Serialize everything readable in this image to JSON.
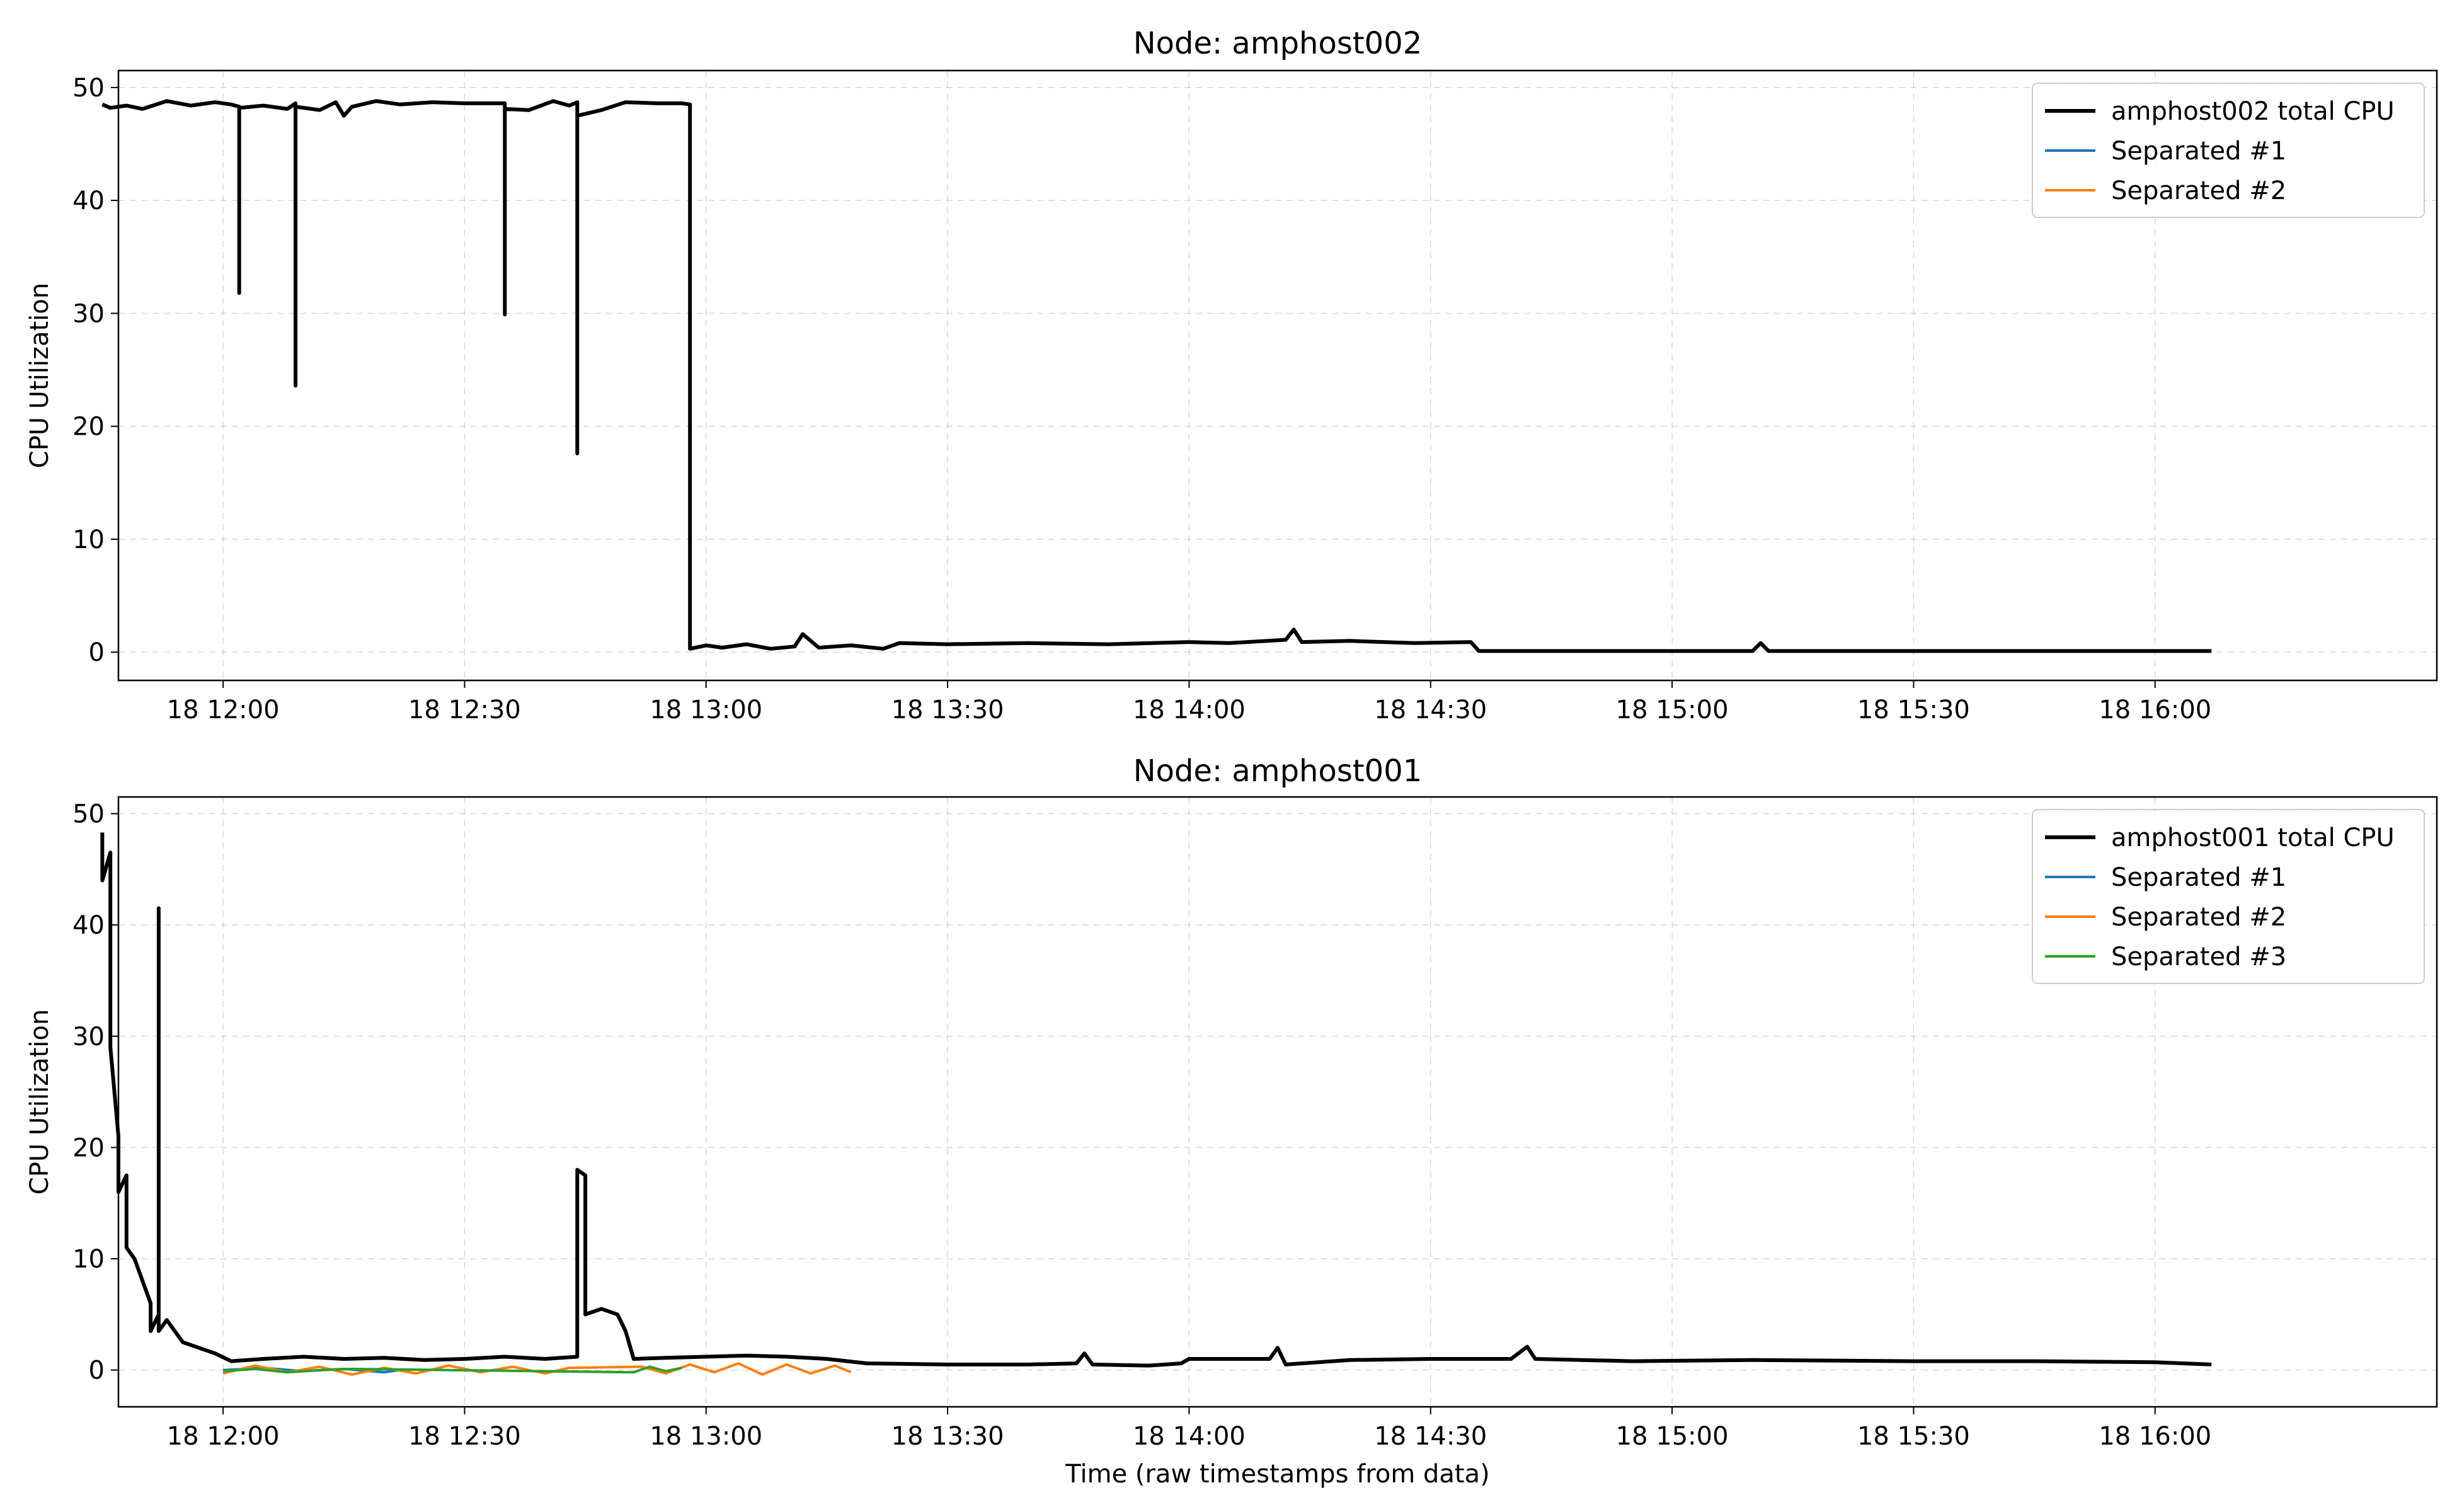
{
  "figure": {
    "xlabel": "Time (raw timestamps from data)"
  },
  "chart_data": [
    {
      "type": "line",
      "title": "Node: amphost002",
      "xlabel": "",
      "ylabel": "CPU Utilization",
      "x_unit": "HH:MM on day 18",
      "xlim": [
        "11:47",
        "16:35"
      ],
      "ylim": [
        -2.5,
        51.5
      ],
      "yticks": [
        0,
        10,
        20,
        30,
        40,
        50
      ],
      "xticks": [
        "12:00",
        "12:30",
        "13:00",
        "13:30",
        "14:00",
        "14:30",
        "15:00",
        "15:30",
        "16:00"
      ],
      "xtick_labels": [
        "18 12:00",
        "18 12:30",
        "18 13:00",
        "18 13:30",
        "18 14:00",
        "18 14:30",
        "18 15:00",
        "18 15:30",
        "18 16:00"
      ],
      "grid": true,
      "legend_position": "upper right",
      "series": [
        {
          "name": "amphost002 total CPU",
          "color": "#000000",
          "points": [
            [
              "11:45",
              48.5
            ],
            [
              "11:46",
              48.2
            ],
            [
              "11:48",
              48.4
            ],
            [
              "11:50",
              48.1
            ],
            [
              "11:53",
              48.8
            ],
            [
              "11:56",
              48.4
            ],
            [
              "11:59",
              48.7
            ],
            [
              "12:01",
              48.5
            ],
            [
              "12:02",
              48.3
            ],
            [
              "12:02",
              31.8
            ],
            [
              "12:02",
              48.2
            ],
            [
              "12:05",
              48.4
            ],
            [
              "12:08",
              48.1
            ],
            [
              "12:09",
              48.6
            ],
            [
              "12:09",
              23.6
            ],
            [
              "12:09",
              48.3
            ],
            [
              "12:12",
              48.0
            ],
            [
              "12:14",
              48.7
            ],
            [
              "12:15",
              47.5
            ],
            [
              "12:16",
              48.3
            ],
            [
              "12:19",
              48.8
            ],
            [
              "12:22",
              48.5
            ],
            [
              "12:26",
              48.7
            ],
            [
              "12:30",
              48.6
            ],
            [
              "12:35",
              48.6
            ],
            [
              "12:35",
              29.9
            ],
            [
              "12:35",
              48.1
            ],
            [
              "12:38",
              48.0
            ],
            [
              "12:41",
              48.8
            ],
            [
              "12:43",
              48.4
            ],
            [
              "12:44",
              48.7
            ],
            [
              "12:44",
              17.6
            ],
            [
              "12:44",
              47.5
            ],
            [
              "12:47",
              48.0
            ],
            [
              "12:50",
              48.7
            ],
            [
              "12:54",
              48.6
            ],
            [
              "12:57",
              48.6
            ],
            [
              "12:58",
              48.5
            ],
            [
              "12:58",
              0.3
            ],
            [
              "13:00",
              0.6
            ],
            [
              "13:02",
              0.4
            ],
            [
              "13:05",
              0.7
            ],
            [
              "13:08",
              0.3
            ],
            [
              "13:11",
              0.5
            ],
            [
              "13:12",
              1.6
            ],
            [
              "13:14",
              0.4
            ],
            [
              "13:18",
              0.6
            ],
            [
              "13:22",
              0.3
            ],
            [
              "13:24",
              0.8
            ],
            [
              "13:30",
              0.7
            ],
            [
              "13:40",
              0.8
            ],
            [
              "13:50",
              0.7
            ],
            [
              "14:00",
              0.9
            ],
            [
              "14:05",
              0.8
            ],
            [
              "14:12",
              1.1
            ],
            [
              "14:13",
              2.0
            ],
            [
              "14:14",
              0.9
            ],
            [
              "14:20",
              1.0
            ],
            [
              "14:28",
              0.8
            ],
            [
              "14:35",
              0.9
            ],
            [
              "14:36",
              0.1
            ],
            [
              "14:50",
              0.1
            ],
            [
              "15:00",
              0.1
            ],
            [
              "15:10",
              0.1
            ],
            [
              "15:11",
              0.8
            ],
            [
              "15:12",
              0.1
            ],
            [
              "15:30",
              0.1
            ],
            [
              "15:45",
              0.1
            ],
            [
              "16:00",
              0.1
            ],
            [
              "16:07",
              0.1
            ]
          ]
        },
        {
          "name": "Separated #1",
          "color": "#1f77b4",
          "points": []
        },
        {
          "name": "Separated #2",
          "color": "#ff7f0e",
          "points": []
        }
      ]
    },
    {
      "type": "line",
      "title": "Node: amphost001",
      "xlabel": "Time (raw timestamps from data)",
      "ylabel": "CPU Utilization",
      "x_unit": "HH:MM on day 18",
      "xlim": [
        "11:47",
        "16:35"
      ],
      "ylim": [
        -3.3,
        51.5
      ],
      "yticks": [
        0,
        10,
        20,
        30,
        40,
        50
      ],
      "xticks": [
        "12:00",
        "12:30",
        "13:00",
        "13:30",
        "14:00",
        "14:30",
        "15:00",
        "15:30",
        "16:00"
      ],
      "xtick_labels": [
        "18 12:00",
        "18 12:30",
        "18 13:00",
        "18 13:30",
        "18 14:00",
        "18 14:30",
        "18 15:00",
        "18 15:30",
        "18 16:00"
      ],
      "grid": true,
      "legend_position": "upper right",
      "series": [
        {
          "name": "amphost001 total CPU",
          "color": "#000000",
          "points": [
            [
              "11:45",
              48.3
            ],
            [
              "11:45",
              44.0
            ],
            [
              "11:46",
              46.5
            ],
            [
              "11:46",
              40.0
            ],
            [
              "11:46",
              29.0
            ],
            [
              "11:47",
              21.0
            ],
            [
              "11:47",
              16.0
            ],
            [
              "11:48",
              17.5
            ],
            [
              "11:48",
              11.0
            ],
            [
              "11:49",
              10.0
            ],
            [
              "11:50",
              8.0
            ],
            [
              "11:51",
              6.0
            ],
            [
              "11:51",
              3.5
            ],
            [
              "11:52",
              5.0
            ],
            [
              "11:52",
              41.5
            ],
            [
              "11:52",
              3.5
            ],
            [
              "11:53",
              4.5
            ],
            [
              "11:55",
              2.5
            ],
            [
              "11:57",
              2.0
            ],
            [
              "11:59",
              1.5
            ],
            [
              "12:01",
              0.8
            ],
            [
              "12:05",
              1.0
            ],
            [
              "12:10",
              1.2
            ],
            [
              "12:15",
              1.0
            ],
            [
              "12:20",
              1.1
            ],
            [
              "12:25",
              0.9
            ],
            [
              "12:30",
              1.0
            ],
            [
              "12:35",
              1.2
            ],
            [
              "12:40",
              1.0
            ],
            [
              "12:44",
              1.2
            ],
            [
              "12:44",
              18.0
            ],
            [
              "12:45",
              17.5
            ],
            [
              "12:45",
              5.0
            ],
            [
              "12:47",
              5.5
            ],
            [
              "12:49",
              5.0
            ],
            [
              "12:50",
              3.5
            ],
            [
              "12:51",
              1.0
            ],
            [
              "12:55",
              1.1
            ],
            [
              "13:00",
              1.2
            ],
            [
              "13:05",
              1.3
            ],
            [
              "13:10",
              1.2
            ],
            [
              "13:15",
              1.0
            ],
            [
              "13:20",
              0.6
            ],
            [
              "13:30",
              0.5
            ],
            [
              "13:40",
              0.5
            ],
            [
              "13:46",
              0.6
            ],
            [
              "13:47",
              1.5
            ],
            [
              "13:48",
              0.5
            ],
            [
              "13:55",
              0.4
            ],
            [
              "13:59",
              0.6
            ],
            [
              "14:00",
              1.0
            ],
            [
              "14:10",
              1.0
            ],
            [
              "14:11",
              2.0
            ],
            [
              "14:12",
              0.5
            ],
            [
              "14:20",
              0.9
            ],
            [
              "14:30",
              1.0
            ],
            [
              "14:40",
              1.0
            ],
            [
              "14:42",
              2.1
            ],
            [
              "14:43",
              1.0
            ],
            [
              "14:55",
              0.8
            ],
            [
              "15:10",
              0.9
            ],
            [
              "15:30",
              0.8
            ],
            [
              "15:45",
              0.8
            ],
            [
              "16:00",
              0.7
            ],
            [
              "16:07",
              0.5
            ]
          ]
        },
        {
          "name": "Separated #1",
          "color": "#1f77b4",
          "points": [
            [
              "12:00",
              0.0
            ],
            [
              "12:05",
              0.2
            ],
            [
              "12:10",
              -0.1
            ],
            [
              "12:15",
              0.1
            ],
            [
              "12:20",
              -0.2
            ],
            [
              "12:22",
              0.0
            ]
          ]
        },
        {
          "name": "Separated #2",
          "color": "#ff7f0e",
          "points": [
            [
              "12:00",
              -0.3
            ],
            [
              "12:04",
              0.4
            ],
            [
              "12:08",
              -0.2
            ],
            [
              "12:12",
              0.3
            ],
            [
              "12:16",
              -0.4
            ],
            [
              "12:20",
              0.2
            ],
            [
              "12:24",
              -0.3
            ],
            [
              "12:28",
              0.4
            ],
            [
              "12:32",
              -0.2
            ],
            [
              "12:36",
              0.3
            ],
            [
              "12:40",
              -0.3
            ],
            [
              "12:43",
              0.2
            ],
            [
              "12:52",
              0.3
            ],
            [
              "12:55",
              -0.3
            ],
            [
              "12:58",
              0.5
            ],
            [
              "13:01",
              -0.2
            ],
            [
              "13:04",
              0.6
            ],
            [
              "13:07",
              -0.4
            ],
            [
              "13:10",
              0.5
            ],
            [
              "13:13",
              -0.3
            ],
            [
              "13:16",
              0.4
            ],
            [
              "13:18",
              -0.2
            ]
          ]
        },
        {
          "name": "Separated #3",
          "color": "#2ca02c",
          "points": [
            [
              "12:00",
              -0.1
            ],
            [
              "12:04",
              0.1
            ],
            [
              "12:08",
              -0.2
            ],
            [
              "12:12",
              0.0
            ],
            [
              "12:16",
              0.1
            ],
            [
              "12:51",
              -0.2
            ],
            [
              "12:53",
              0.3
            ],
            [
              "12:55",
              -0.1
            ],
            [
              "12:57",
              0.2
            ]
          ]
        }
      ]
    }
  ]
}
